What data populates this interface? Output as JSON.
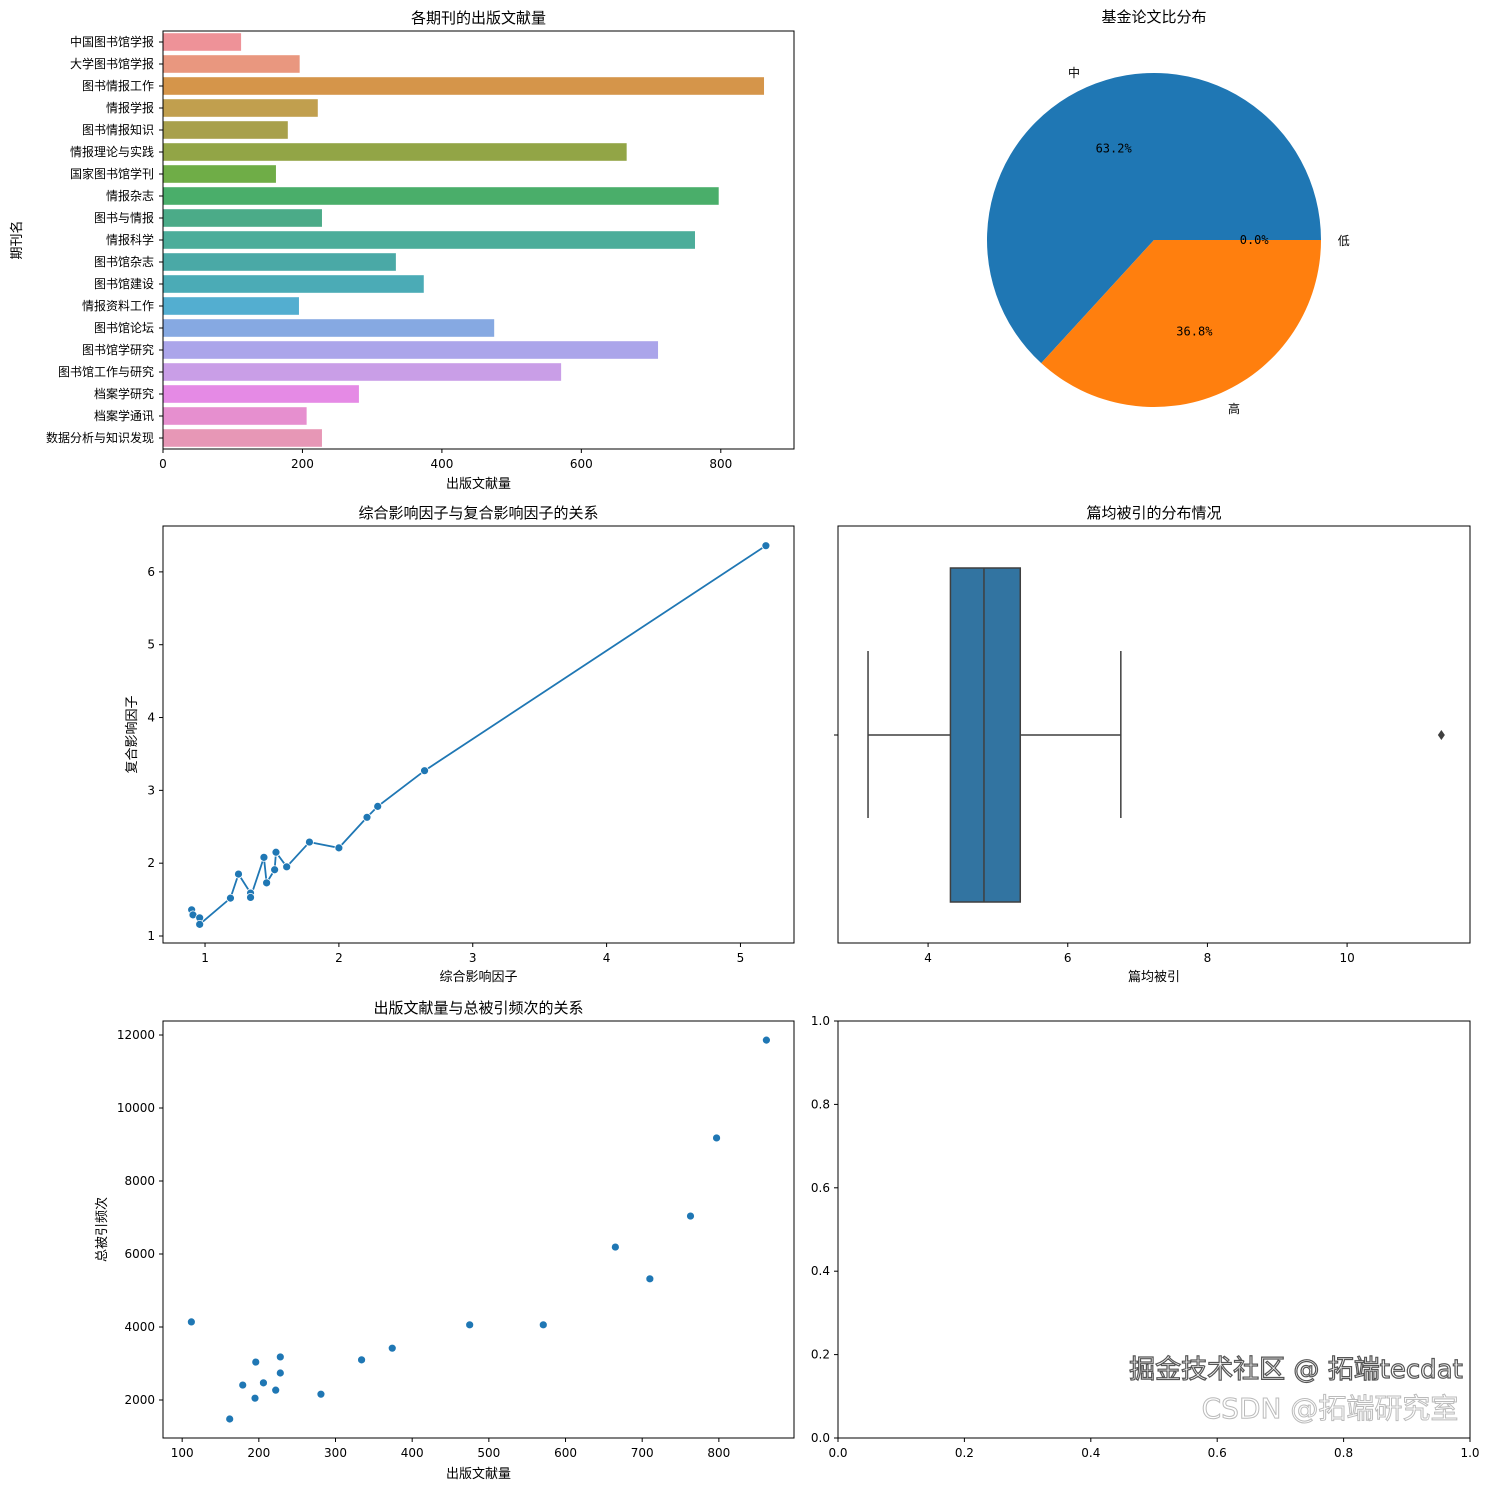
{
  "chart_data": [
    {
      "type": "bar",
      "orientation": "horizontal",
      "title": "各期刊的出版文献量",
      "xlabel": "出版文献量",
      "ylabel": "期刊名",
      "categories": [
        "中国图书馆学报",
        "大学图书馆学报",
        "图书情报工作",
        "情报学报",
        "图书情报知识",
        "情报理论与实践",
        "国家图书馆学刊",
        "情报杂志",
        "图书与情报",
        "情报科学",
        "图书馆杂志",
        "图书馆建设",
        "情报资料工作",
        "图书馆论坛",
        "图书馆学研究",
        "图书馆工作与研究",
        "档案学研究",
        "档案学通讯",
        "数据分析与知识发现"
      ],
      "values": [
        112,
        196,
        862,
        222,
        179,
        665,
        162,
        797,
        228,
        763,
        334,
        374,
        195,
        475,
        710,
        571,
        281,
        206,
        228
      ],
      "colors": [
        "#ee9298",
        "#e9977f",
        "#d5954a",
        "#c19f4e",
        "#a8a04b",
        "#92a546",
        "#6fad47",
        "#4aae6a",
        "#4bab88",
        "#4cad9a",
        "#4aa9a6",
        "#4babb6",
        "#53aed0",
        "#86a9e2",
        "#aba5ea",
        "#c99ee7",
        "#e58ae5",
        "#e68fcf",
        "#e797b6"
      ],
      "xlim": [
        0,
        905
      ],
      "xticks": [
        0,
        200,
        400,
        600,
        800
      ],
      "xtick_labels": [
        "0",
        "200",
        "400",
        "600",
        "800"
      ]
    },
    {
      "type": "pie",
      "title": "基金论文比分布",
      "labels": [
        "中",
        "高",
        "低"
      ],
      "values": [
        63.2,
        36.8,
        0.0
      ],
      "pct_labels": [
        "63.2%",
        "36.8%",
        "0.0%"
      ],
      "colors": [
        "#1f77b4",
        "#ff7f0e",
        "#2ca02c"
      ]
    },
    {
      "type": "line",
      "title": "综合影响因子与复合影响因子的关系",
      "xlabel": "综合影响因子",
      "ylabel": "复合影响因子",
      "x": [
        0.9,
        0.91,
        0.96,
        0.96,
        1.19,
        1.25,
        1.34,
        1.34,
        1.44,
        1.46,
        1.52,
        1.53,
        1.61,
        1.78,
        2.0,
        2.21,
        2.29,
        2.64,
        5.19
      ],
      "y": [
        1.36,
        1.29,
        1.25,
        1.16,
        1.52,
        1.85,
        1.59,
        1.53,
        2.08,
        1.73,
        1.91,
        2.15,
        1.95,
        2.29,
        2.21,
        2.63,
        2.78,
        3.27,
        6.36
      ],
      "color": "#1f77b4",
      "xlim": [
        0.686,
        5.4
      ],
      "ylim": [
        0.904,
        6.63
      ],
      "xticks": [
        1,
        2,
        3,
        4,
        5
      ],
      "xtick_labels": [
        "1",
        "2",
        "3",
        "4",
        "5"
      ],
      "yticks": [
        1,
        2,
        3,
        4,
        5,
        6
      ],
      "ytick_labels": [
        "1",
        "2",
        "3",
        "4",
        "5",
        "6"
      ]
    },
    {
      "type": "box",
      "title": "篇均被引的分布情况",
      "xlabel": "篇均被引",
      "whislo": 3.14,
      "q1": 4.32,
      "median": 4.8,
      "q3": 5.32,
      "whishi": 6.76,
      "fliers": [
        11.35
      ],
      "color": "#3274a1",
      "xlim": [
        2.71,
        11.76
      ],
      "xticks": [
        4,
        6,
        8,
        10
      ],
      "xtick_labels": [
        "4",
        "6",
        "8",
        "10"
      ]
    },
    {
      "type": "scatter",
      "title": "出版文献量与总被引频次的关系",
      "xlabel": "出版文献量",
      "ylabel": "总被引频次",
      "x": [
        112,
        162,
        179,
        195,
        196,
        206,
        222,
        228,
        228,
        281,
        334,
        374,
        475,
        571,
        665,
        710,
        763,
        797,
        862
      ],
      "y": [
        4140,
        1480,
        2410,
        2050,
        3040,
        2470,
        2270,
        2740,
        3180,
        2160,
        3100,
        3420,
        4060,
        4060,
        6190,
        5320,
        7040,
        9180,
        11860
      ],
      "color": "#1f77b4",
      "xlim": [
        75,
        898
      ],
      "ylim": [
        959,
        12384
      ],
      "xticks": [
        100,
        200,
        300,
        400,
        500,
        600,
        700,
        800
      ],
      "xtick_labels": [
        "100",
        "200",
        "300",
        "400",
        "500",
        "600",
        "700",
        "800"
      ],
      "yticks": [
        2000,
        4000,
        6000,
        8000,
        10000,
        12000
      ],
      "ytick_labels": [
        "2000",
        "4000",
        "6000",
        "8000",
        "10000",
        "12000"
      ]
    },
    {
      "type": "empty",
      "xlim": [
        0,
        1
      ],
      "ylim": [
        0,
        1
      ],
      "xticks": [
        0,
        0.2,
        0.4,
        0.6,
        0.8,
        1.0
      ],
      "xtick_labels": [
        "0.0",
        "0.2",
        "0.4",
        "0.6",
        "0.8",
        "1.0"
      ],
      "yticks": [
        0,
        0.2,
        0.4,
        0.6,
        0.8,
        1.0
      ],
      "ytick_labels": [
        "0.0",
        "0.2",
        "0.4",
        "0.6",
        "0.8",
        "1.0"
      ]
    }
  ],
  "watermarks": [
    "掘金技术社区 @ 拓端tecdat",
    "CSDN @拓端研究室"
  ]
}
